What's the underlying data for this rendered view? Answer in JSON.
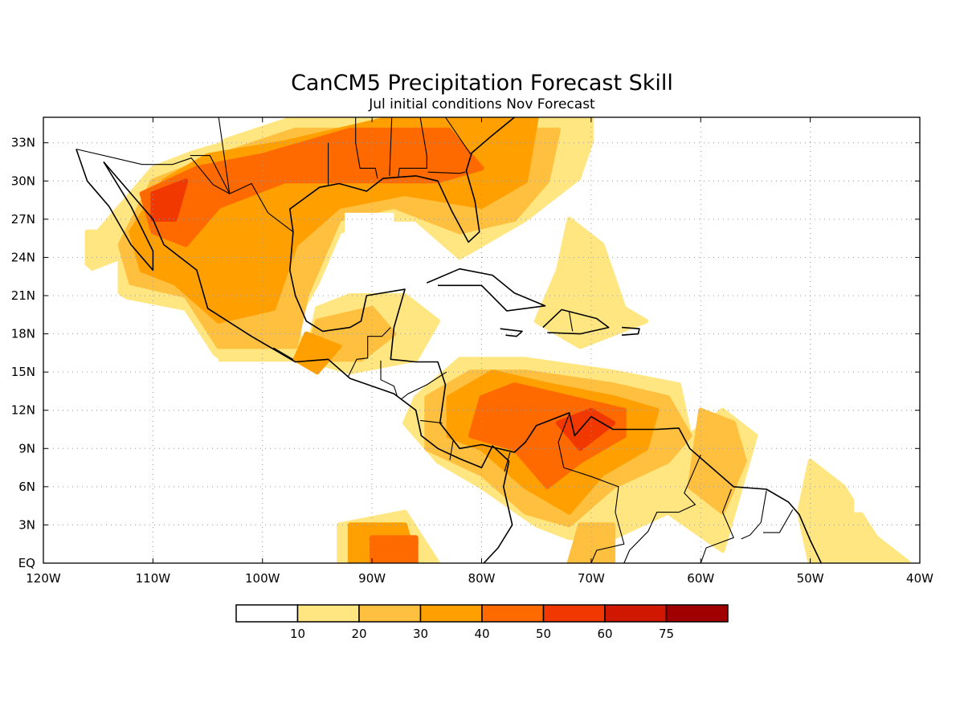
{
  "title": "CanCM5 Precipitation Forecast Skill",
  "subtitle": "Jul initial conditions  Nov Forecast",
  "map": {
    "lon_range": [
      -120,
      -40
    ],
    "lat_range": [
      0,
      35
    ],
    "lon_ticks": [
      "120W",
      "110W",
      "100W",
      "90W",
      "80W",
      "70W",
      "60W",
      "50W",
      "40W"
    ],
    "lat_ticks": [
      "EQ",
      "3N",
      "6N",
      "9N",
      "12N",
      "15N",
      "18N",
      "21N",
      "24N",
      "27N",
      "30N",
      "33N"
    ],
    "grid": "dotted"
  },
  "colorbar": {
    "labels": [
      "10",
      "20",
      "30",
      "40",
      "50",
      "60",
      "75"
    ],
    "colors": [
      "#ffffff",
      "#ffe680",
      "#ffc040",
      "#ffa000",
      "#ff6a00",
      "#f03800",
      "#d01800",
      "#a00000"
    ]
  },
  "skill_regions": [
    {
      "level": 1,
      "pts": [
        [
          -115,
          26
        ],
        [
          -110,
          31
        ],
        [
          -104,
          33
        ],
        [
          -97,
          35
        ],
        [
          -70,
          35
        ],
        [
          -70,
          31
        ],
        [
          -73,
          29
        ],
        [
          -76,
          27
        ],
        [
          -80,
          25
        ],
        [
          -82,
          24
        ],
        [
          -86,
          27
        ],
        [
          -90,
          27
        ],
        [
          -93,
          26
        ],
        [
          -95,
          22
        ],
        [
          -97,
          19
        ],
        [
          -96,
          16
        ],
        [
          -99,
          16
        ],
        [
          -104,
          16
        ],
        [
          -107,
          20
        ],
        [
          -113,
          21
        ],
        [
          -113,
          24
        ],
        [
          -116,
          23
        ],
        [
          -116,
          26
        ]
      ]
    },
    {
      "level": 1,
      "pts": [
        [
          -95,
          20
        ],
        [
          -92,
          21
        ],
        [
          -87,
          21
        ],
        [
          -84,
          19
        ],
        [
          -86,
          16
        ],
        [
          -92,
          15
        ],
        [
          -96,
          16
        ]
      ]
    },
    {
      "level": 1,
      "pts": [
        [
          -72,
          27
        ],
        [
          -69,
          25
        ],
        [
          -67,
          20
        ],
        [
          -65,
          19
        ],
        [
          -71,
          17
        ],
        [
          -75,
          19
        ],
        [
          -73,
          23
        ]
      ]
    },
    {
      "level": 1,
      "pts": [
        [
          -86,
          13
        ],
        [
          -82,
          16
        ],
        [
          -76,
          16
        ],
        [
          -68,
          15
        ],
        [
          -62,
          14
        ],
        [
          -61,
          10
        ],
        [
          -58,
          12
        ],
        [
          -55,
          10
        ],
        [
          -56,
          7
        ],
        [
          -58,
          1
        ],
        [
          -63,
          4
        ],
        [
          -68,
          2
        ],
        [
          -72,
          2
        ],
        [
          -75,
          3
        ],
        [
          -80,
          6
        ],
        [
          -84,
          8
        ],
        [
          -87,
          11
        ]
      ]
    },
    {
      "level": 1,
      "pts": [
        [
          -50,
          8
        ],
        [
          -47,
          6
        ],
        [
          -44,
          2
        ],
        [
          -41,
          0
        ],
        [
          -50,
          0
        ],
        [
          -51,
          4
        ]
      ]
    },
    {
      "level": 1,
      "pts": [
        [
          -93,
          3
        ],
        [
          -87,
          4
        ],
        [
          -84,
          0
        ],
        [
          -93,
          0
        ]
      ]
    },
    {
      "level": 2,
      "pts": [
        [
          -113,
          25
        ],
        [
          -110,
          30
        ],
        [
          -104,
          32
        ],
        [
          -97,
          34
        ],
        [
          -73,
          34
        ],
        [
          -74,
          30
        ],
        [
          -77,
          27
        ],
        [
          -82,
          26
        ],
        [
          -88,
          28
        ],
        [
          -93,
          27
        ],
        [
          -96,
          21
        ],
        [
          -97,
          17
        ],
        [
          -104,
          17
        ],
        [
          -107,
          21
        ],
        [
          -112,
          22
        ]
      ]
    },
    {
      "level": 2,
      "pts": [
        [
          -95,
          19
        ],
        [
          -90,
          20
        ],
        [
          -88,
          18
        ],
        [
          -91,
          16
        ],
        [
          -96,
          16
        ]
      ]
    },
    {
      "level": 2,
      "pts": [
        [
          -85,
          13
        ],
        [
          -81,
          15
        ],
        [
          -76,
          15
        ],
        [
          -68,
          14
        ],
        [
          -63,
          13
        ],
        [
          -61,
          10
        ],
        [
          -63,
          8
        ],
        [
          -68,
          6
        ],
        [
          -72,
          3
        ],
        [
          -76,
          4
        ],
        [
          -80,
          7
        ],
        [
          -85,
          9
        ]
      ]
    },
    {
      "level": 2,
      "pts": [
        [
          -60,
          12
        ],
        [
          -57,
          11
        ],
        [
          -56,
          8
        ],
        [
          -58,
          4
        ],
        [
          -61,
          6
        ]
      ]
    },
    {
      "level": 2,
      "pts": [
        [
          -71,
          3
        ],
        [
          -68,
          3
        ],
        [
          -68,
          0
        ],
        [
          -72,
          0
        ]
      ]
    },
    {
      "level": 3,
      "pts": [
        [
          -112,
          26
        ],
        [
          -109,
          30
        ],
        [
          -105,
          32
        ],
        [
          -98,
          33
        ],
        [
          -88,
          35
        ],
        [
          -75,
          35
        ],
        [
          -76,
          30
        ],
        [
          -80,
          28
        ],
        [
          -87,
          29
        ],
        [
          -93,
          28
        ],
        [
          -97,
          25
        ],
        [
          -99,
          20
        ],
        [
          -104,
          19
        ],
        [
          -108,
          22
        ],
        [
          -111,
          23
        ]
      ]
    },
    {
      "level": 3,
      "pts": [
        [
          -96,
          18
        ],
        [
          -93,
          17
        ],
        [
          -95,
          15
        ],
        [
          -97,
          16
        ]
      ]
    },
    {
      "level": 3,
      "pts": [
        [
          -83,
          13
        ],
        [
          -79,
          15
        ],
        [
          -74,
          14
        ],
        [
          -68,
          13
        ],
        [
          -64,
          12
        ],
        [
          -65,
          9
        ],
        [
          -69,
          7
        ],
        [
          -72,
          4
        ],
        [
          -76,
          6
        ],
        [
          -80,
          9
        ],
        [
          -83,
          10
        ]
      ]
    },
    {
      "level": 3,
      "pts": [
        [
          -92,
          3
        ],
        [
          -87,
          3
        ],
        [
          -86,
          0
        ],
        [
          -92,
          0
        ]
      ]
    },
    {
      "level": 4,
      "pts": [
        [
          -111,
          29
        ],
        [
          -106,
          31
        ],
        [
          -100,
          32
        ],
        [
          -92,
          34
        ],
        [
          -83,
          34
        ],
        [
          -80,
          31
        ],
        [
          -84,
          30
        ],
        [
          -90,
          30
        ],
        [
          -98,
          30
        ],
        [
          -104,
          28
        ],
        [
          -107,
          25
        ],
        [
          -110,
          26
        ]
      ]
    },
    {
      "level": 4,
      "pts": [
        [
          -80,
          13
        ],
        [
          -77,
          14
        ],
        [
          -72,
          13
        ],
        [
          -67,
          12
        ],
        [
          -67,
          10
        ],
        [
          -71,
          8
        ],
        [
          -74,
          6
        ],
        [
          -77,
          9
        ],
        [
          -81,
          10
        ]
      ]
    },
    {
      "level": 4,
      "pts": [
        [
          -90,
          2
        ],
        [
          -86,
          2
        ],
        [
          -86,
          0
        ],
        [
          -90,
          0
        ]
      ]
    },
    {
      "level": 5,
      "pts": [
        [
          -110,
          29
        ],
        [
          -107,
          30
        ],
        [
          -108,
          27
        ],
        [
          -110,
          27
        ]
      ]
    },
    {
      "level": 5,
      "pts": [
        [
          -73,
          11
        ],
        [
          -70,
          12
        ],
        [
          -68,
          11
        ],
        [
          -71,
          9
        ]
      ]
    }
  ],
  "mask_regions": [
    [
      [
        -120,
        35
      ],
      [
        -101,
        35
      ],
      [
        -104,
        33
      ],
      [
        -110,
        31.5
      ],
      [
        -116,
        27
      ],
      [
        -117,
        24
      ],
      [
        -113,
        21
      ],
      [
        -107,
        18
      ],
      [
        -104,
        16
      ],
      [
        -104,
        12
      ],
      [
        -120,
        12
      ]
    ],
    [
      [
        -92.5,
        25
      ],
      [
        -88,
        25
      ],
      [
        -88,
        27.5
      ],
      [
        -92.5,
        27.5
      ]
    ],
    [
      [
        -69,
        35
      ],
      [
        -40,
        35
      ],
      [
        -40,
        27
      ],
      [
        -68,
        27
      ],
      [
        -71,
        30
      ]
    ],
    [
      [
        -46,
        27
      ],
      [
        -40,
        27
      ],
      [
        -40,
        4
      ],
      [
        -46,
        4
      ]
    ]
  ],
  "coastlines": [
    [
      [
        -117,
        32.5
      ],
      [
        -116,
        30
      ],
      [
        -114,
        28
      ],
      [
        -112,
        25
      ],
      [
        -110,
        23
      ],
      [
        -110,
        24.5
      ],
      [
        -112,
        28
      ],
      [
        -114.5,
        31.5
      ]
    ],
    [
      [
        -114.5,
        31.5
      ],
      [
        -112,
        29
      ],
      [
        -110,
        27
      ],
      [
        -109,
        25
      ],
      [
        -106,
        23
      ],
      [
        -105,
        20
      ],
      [
        -101,
        17.8
      ],
      [
        -97,
        15.8
      ],
      [
        -94,
        16
      ],
      [
        -92,
        14.5
      ],
      [
        -88,
        13.3
      ],
      [
        -86,
        12
      ],
      [
        -85.5,
        10
      ],
      [
        -84,
        9
      ],
      [
        -82,
        8.2
      ],
      [
        -80,
        7.5
      ],
      [
        -79,
        9.2
      ],
      [
        -77.5,
        8
      ],
      [
        -78,
        6
      ],
      [
        -77.2,
        3
      ],
      [
        -78.5,
        1.2
      ],
      [
        -79.8,
        0
      ]
    ],
    [
      [
        -97.2,
        26
      ],
      [
        -97.5,
        23
      ],
      [
        -97,
        21
      ],
      [
        -96,
        19
      ],
      [
        -94.5,
        18.2
      ],
      [
        -92,
        18.5
      ],
      [
        -91,
        19
      ],
      [
        -90.5,
        21
      ],
      [
        -87,
        21.5
      ],
      [
        -87.5,
        20
      ],
      [
        -88,
        18.5
      ],
      [
        -88.3,
        16
      ],
      [
        -86,
        15.8
      ],
      [
        -84,
        15.8
      ],
      [
        -83.3,
        14
      ],
      [
        -83.8,
        11
      ],
      [
        -82,
        9
      ],
      [
        -80,
        9.3
      ],
      [
        -77,
        8.7
      ],
      [
        -76,
        9.5
      ],
      [
        -75,
        10.8
      ],
      [
        -72,
        11.8
      ],
      [
        -71.5,
        10
      ],
      [
        -70,
        11.5
      ],
      [
        -68,
        10.5
      ],
      [
        -64,
        10.5
      ],
      [
        -62,
        10.6
      ],
      [
        -61,
        9
      ],
      [
        -59,
        7.5
      ],
      [
        -57,
        6
      ],
      [
        -54,
        5.8
      ],
      [
        -52,
        4.8
      ],
      [
        -51,
        3.8
      ],
      [
        -50,
        1.8
      ],
      [
        -49,
        0
      ]
    ],
    [
      [
        -97.2,
        26
      ],
      [
        -97.5,
        27.8
      ],
      [
        -94.8,
        29.5
      ],
      [
        -93,
        29.8
      ],
      [
        -90.5,
        29.2
      ],
      [
        -89,
        30.2
      ],
      [
        -86,
        30.4
      ],
      [
        -84,
        30
      ],
      [
        -82.7,
        27.6
      ],
      [
        -81.2,
        25.2
      ],
      [
        -80.2,
        26
      ],
      [
        -80.6,
        28.4
      ],
      [
        -81.4,
        30.8
      ],
      [
        -80.9,
        32.2
      ],
      [
        -79,
        33.6
      ],
      [
        -77,
        35
      ]
    ],
    [
      [
        -85,
        22
      ],
      [
        -82,
        23.1
      ],
      [
        -79,
        22.6
      ],
      [
        -77,
        21.2
      ],
      [
        -74.2,
        20.2
      ],
      [
        -77.7,
        19.8
      ],
      [
        -80,
        21.8
      ],
      [
        -84,
        21.8
      ]
    ],
    [
      [
        -74.4,
        18.5
      ],
      [
        -72.7,
        19.9
      ],
      [
        -69.5,
        19.2
      ],
      [
        -68.4,
        18.5
      ],
      [
        -71,
        18
      ],
      [
        -74,
        18.1
      ]
    ],
    [
      [
        -78.3,
        18.4
      ],
      [
        -76.3,
        18.2
      ],
      [
        -76.8,
        17.8
      ],
      [
        -77.8,
        17.9
      ]
    ],
    [
      [
        -67.2,
        18.5
      ],
      [
        -65.6,
        18.4
      ],
      [
        -65.7,
        18
      ],
      [
        -67.2,
        17.9
      ]
    ]
  ],
  "borders": [
    [
      [
        -117,
        32.5
      ],
      [
        -111,
        31.3
      ],
      [
        -108.2,
        31.3
      ],
      [
        -106.5,
        31.8
      ],
      [
        -104.5,
        29.7
      ],
      [
        -103,
        29
      ],
      [
        -101,
        29.8
      ],
      [
        -99.5,
        27.5
      ],
      [
        -97.2,
        26
      ]
    ],
    [
      [
        -92.2,
        14.6
      ],
      [
        -91.4,
        16
      ],
      [
        -90.4,
        16.1
      ],
      [
        -90.4,
        17.8
      ],
      [
        -89.1,
        17.8
      ],
      [
        -88.3,
        18.5
      ]
    ],
    [
      [
        -89.2,
        15.9
      ],
      [
        -89.2,
        14.4
      ],
      [
        -88,
        13.9
      ],
      [
        -87.7,
        13.1
      ]
    ],
    [
      [
        -83.2,
        15
      ],
      [
        -85,
        14
      ],
      [
        -86.7,
        13.3
      ],
      [
        -87.3,
        12.9
      ]
    ],
    [
      [
        -83.6,
        11
      ],
      [
        -85.6,
        11.2
      ]
    ],
    [
      [
        -82.9,
        8.1
      ],
      [
        -82.6,
        9.6
      ]
    ],
    [
      [
        -77.4,
        8.7
      ],
      [
        -77.9,
        7.2
      ]
    ],
    [
      [
        -72,
        11.7
      ],
      [
        -73,
        9.5
      ],
      [
        -72.5,
        7.5
      ],
      [
        -70,
        6.8
      ],
      [
        -67.5,
        6
      ],
      [
        -67.8,
        4
      ],
      [
        -67,
        1.5
      ],
      [
        -69.5,
        1
      ],
      [
        -70,
        0
      ]
    ],
    [
      [
        -60,
        8.5
      ],
      [
        -61.5,
        5.5
      ],
      [
        -60.5,
        4.6
      ],
      [
        -62,
        4
      ],
      [
        -64,
        4
      ],
      [
        -64.8,
        2.5
      ],
      [
        -66.5,
        1
      ],
      [
        -67,
        0
      ]
    ],
    [
      [
        -57.2,
        5.8
      ],
      [
        -58,
        4
      ],
      [
        -57,
        2
      ],
      [
        -59.5,
        1.2
      ],
      [
        -60,
        0
      ]
    ],
    [
      [
        -54,
        5.7
      ],
      [
        -54.5,
        3.2
      ],
      [
        -55.5,
        2.2
      ],
      [
        -56.3,
        1.9
      ]
    ],
    [
      [
        -51.6,
        4.2
      ],
      [
        -52.8,
        2.4
      ],
      [
        -54.3,
        2.4
      ]
    ],
    [
      [
        -104,
        35
      ],
      [
        -103,
        29
      ],
      [
        -104.8,
        32
      ],
      [
        -106.6,
        32
      ]
    ],
    [
      [
        -94,
        33
      ],
      [
        -94,
        29.7
      ]
    ],
    [
      [
        -91.5,
        35
      ],
      [
        -91.5,
        33
      ],
      [
        -91.1,
        31
      ],
      [
        -89.7,
        31
      ],
      [
        -89.5,
        30.2
      ]
    ],
    [
      [
        -88.2,
        35
      ],
      [
        -88.4,
        30.4
      ]
    ],
    [
      [
        -85.6,
        35
      ],
      [
        -85,
        32
      ],
      [
        -85,
        31
      ],
      [
        -87.5,
        31
      ],
      [
        -87.6,
        30.3
      ]
    ],
    [
      [
        -83.3,
        35
      ],
      [
        -81,
        32.1
      ]
    ],
    [
      [
        -84.9,
        30.7
      ],
      [
        -82,
        30.6
      ],
      [
        -81.5,
        30.7
      ]
    ],
    [
      [
        -97.2,
        16
      ],
      [
        -99,
        16.9
      ]
    ],
    [
      [
        -72,
        19.7
      ],
      [
        -71.7,
        18.2
      ]
    ]
  ]
}
